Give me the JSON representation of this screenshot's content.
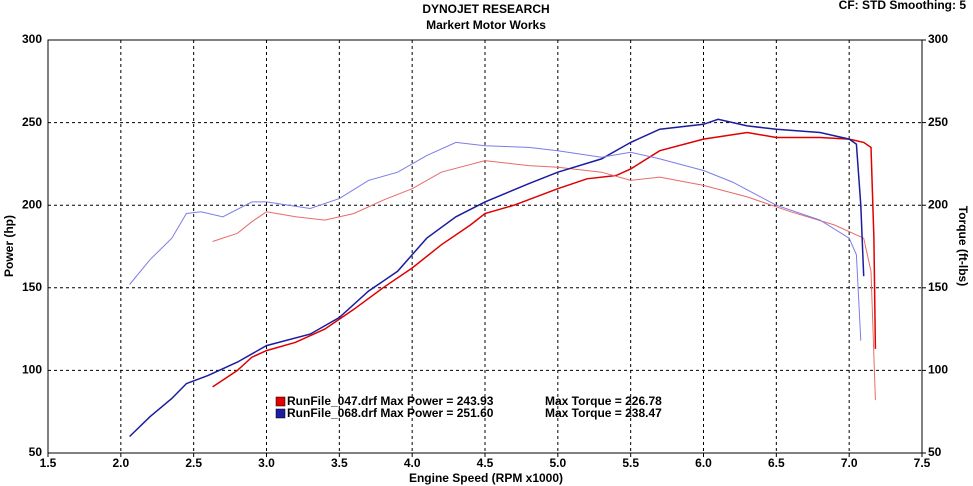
{
  "chart_data": {
    "type": "line",
    "title": "DYNOJET RESEARCH",
    "subtitle": "Markert Motor Works",
    "corner_note": "CF: STD  Smoothing: 5",
    "x_label": "Engine Speed (RPM x1000)",
    "y_label": "Power (hp)",
    "y2_label": "Torque (ft-lbs)",
    "xlim": [
      1.5,
      7.5
    ],
    "xticks": [
      1.5,
      {
        "value": 2,
        "label": "2.0"
      },
      2.5,
      {
        "value": 3,
        "label": "3.0"
      },
      3.5,
      {
        "value": 4,
        "label": "4.0"
      },
      4.5,
      {
        "value": 5,
        "label": "5.0"
      },
      5.5,
      {
        "value": 6,
        "label": "6.0"
      },
      6.5,
      {
        "value": 7,
        "label": "7.0"
      },
      7.5
    ],
    "ylim": [
      50,
      300
    ],
    "yticks": [
      50,
      100,
      150,
      200,
      250,
      300
    ],
    "y2lim": [
      50,
      300
    ],
    "y2ticks": [
      50,
      100,
      150,
      200,
      250,
      300
    ],
    "grid": true,
    "legend": [
      {
        "color": "#e00000",
        "power": "RunFile_047.drf Max Power = 243.93",
        "torque": "Max Torque = 226.78"
      },
      {
        "color": "#1c1ca0",
        "power": "RunFile_068.drf Max Power = 251.60",
        "torque": "Max Torque = 238.47"
      }
    ],
    "series": [
      {
        "color": "#e00000",
        "width": 1.5,
        "x": [
          2.63,
          2.8,
          2.9,
          3.0,
          3.2,
          3.4,
          3.6,
          3.8,
          4.0,
          4.2,
          4.4,
          4.5,
          4.7,
          5.0,
          5.2,
          5.4,
          5.5,
          5.7,
          6.0,
          6.3,
          6.5,
          6.8,
          7.0,
          7.1,
          7.15,
          7.17,
          7.18
        ],
        "values": [
          90,
          100,
          108,
          112,
          117,
          125,
          137,
          150,
          162,
          176,
          188,
          195,
          200,
          210,
          216,
          218,
          222,
          233,
          240,
          244,
          241,
          241,
          240,
          238,
          235,
          180,
          113
        ]
      },
      {
        "color": "#e86a6a",
        "width": 1,
        "axis": "y2",
        "x": [
          2.63,
          2.8,
          2.9,
          3.0,
          3.2,
          3.4,
          3.6,
          3.8,
          4.0,
          4.2,
          4.5,
          4.8,
          5.0,
          5.3,
          5.5,
          5.7,
          6.0,
          6.3,
          6.6,
          6.9,
          7.1,
          7.15,
          7.18
        ],
        "values": [
          178,
          183,
          190,
          196,
          193,
          191,
          195,
          203,
          210,
          220,
          227,
          224,
          223,
          220,
          215,
          217,
          212,
          205,
          196,
          188,
          180,
          160,
          82
        ]
      },
      {
        "color": "#1c1ca0",
        "width": 1.5,
        "x": [
          2.06,
          2.2,
          2.35,
          2.45,
          2.6,
          2.8,
          3.0,
          3.3,
          3.5,
          3.7,
          3.9,
          4.1,
          4.3,
          4.5,
          4.8,
          5.0,
          5.3,
          5.5,
          5.7,
          6.0,
          6.1,
          6.3,
          6.5,
          6.8,
          7.0,
          7.05,
          7.08,
          7.1
        ],
        "values": [
          60,
          72,
          83,
          92,
          97,
          105,
          115,
          122,
          132,
          148,
          160,
          180,
          193,
          202,
          213,
          220,
          228,
          238,
          246,
          249,
          252,
          248,
          246,
          244,
          240,
          237,
          200,
          157
        ]
      },
      {
        "color": "#7c7ce6",
        "width": 1,
        "axis": "y2",
        "x": [
          2.06,
          2.2,
          2.35,
          2.45,
          2.55,
          2.7,
          2.9,
          3.0,
          3.3,
          3.5,
          3.7,
          3.9,
          4.1,
          4.3,
          4.5,
          4.8,
          5.0,
          5.3,
          5.5,
          5.7,
          6.0,
          6.2,
          6.5,
          6.8,
          7.0,
          7.05,
          7.08
        ],
        "values": [
          152,
          167,
          180,
          195,
          196,
          193,
          202,
          202,
          198,
          204,
          215,
          220,
          230,
          238,
          236,
          235,
          233,
          229,
          232,
          228,
          221,
          214,
          200,
          191,
          180,
          170,
          118
        ]
      }
    ]
  }
}
